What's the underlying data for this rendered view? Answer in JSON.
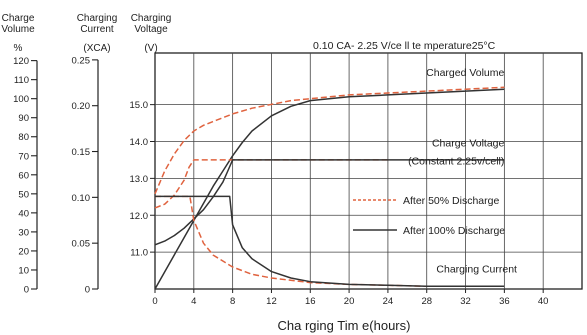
{
  "chart_data": {
    "type": "line",
    "title": "0.10 CA- 2.25 V/ce ll   te mperature25°C",
    "xlabel": "Cha rging Tim e(hours)",
    "x_ticks": [
      0,
      4,
      8,
      12,
      16,
      20,
      24,
      28,
      32,
      36,
      40
    ],
    "xlim": [
      0,
      44
    ],
    "axes": [
      {
        "id": "volume",
        "header": [
          "Charge",
          "Volume"
        ],
        "unit": "%",
        "ticks": [
          0,
          10,
          20,
          30,
          40,
          50,
          60,
          70,
          80,
          90,
          100,
          110,
          120
        ],
        "range": [
          0,
          124
        ]
      },
      {
        "id": "current",
        "header": [
          "Charging",
          "Current"
        ],
        "unit": "(XCA)",
        "ticks": [
          0,
          0.05,
          0.1,
          0.15,
          0.2,
          0.25
        ],
        "tick_labels": [
          "0",
          "0.05",
          "0.10",
          "0.15",
          "0.20",
          "0.25"
        ],
        "range": [
          0,
          0.2575
        ]
      },
      {
        "id": "voltage",
        "header": [
          "Charging",
          "Voltage"
        ],
        "unit": "(V)",
        "ticks": [
          11,
          12,
          13,
          14,
          15
        ],
        "tick_labels": [
          "11.0",
          "12.0",
          "13.0",
          "14.0",
          "15.0"
        ],
        "range": [
          10,
          16.4
        ]
      }
    ],
    "grid": true,
    "series": [
      {
        "name": "After 50% Discharge",
        "style": "dashed",
        "color": "#e0633f",
        "curve": "Charged Volume",
        "axis": "volume",
        "x": [
          0,
          0.5,
          1,
          2,
          3,
          4,
          5,
          6,
          8,
          10,
          12,
          14,
          16,
          20,
          24,
          28,
          32,
          36
        ],
        "y": [
          50,
          56,
          62,
          71,
          78,
          83,
          86,
          88,
          92,
          95,
          97,
          99,
          100,
          102,
          103,
          104,
          105,
          106
        ]
      },
      {
        "name": "After 100% Discharge",
        "style": "solid",
        "color": "#333333",
        "curve": "Charged Volume",
        "axis": "volume",
        "x": [
          0,
          1,
          2,
          3,
          4,
          5,
          6,
          7,
          8,
          9,
          10,
          12,
          14,
          16,
          20,
          24,
          28,
          32,
          36
        ],
        "y": [
          0,
          9,
          18,
          27,
          36,
          45,
          54,
          62,
          70,
          77,
          83,
          91,
          96,
          99,
          101,
          102,
          103,
          104,
          105
        ]
      },
      {
        "name": "After 50% Discharge",
        "style": "dashed",
        "color": "#e0633f",
        "curve": "Charge Voltage",
        "axis": "voltage",
        "x": [
          0,
          1,
          2,
          3,
          3.5,
          4,
          8,
          12,
          16,
          20,
          24
        ],
        "y": [
          12.2,
          12.3,
          12.55,
          12.95,
          13.3,
          13.5,
          13.5,
          13.5,
          13.5,
          13.5,
          13.5
        ]
      },
      {
        "name": "After 100% Discharge",
        "style": "solid",
        "color": "#333333",
        "curve": "Charge Voltage",
        "axis": "voltage",
        "x": [
          0,
          1,
          2,
          3,
          4,
          5,
          6,
          7,
          7.5,
          8,
          12,
          16,
          20,
          24,
          28,
          32,
          36
        ],
        "y": [
          11.2,
          11.3,
          11.45,
          11.65,
          11.9,
          12.15,
          12.5,
          12.9,
          13.2,
          13.5,
          13.5,
          13.5,
          13.5,
          13.5,
          13.5,
          13.5,
          13.5
        ]
      },
      {
        "name": "After 50% Discharge",
        "style": "dashed",
        "color": "#e0633f",
        "curve": "Charging Current",
        "axis": "current",
        "x": [
          0,
          3,
          3.6,
          4,
          5,
          6,
          8,
          10,
          12,
          16,
          20,
          24,
          28,
          32,
          36
        ],
        "y": [
          0.101,
          0.101,
          0.101,
          0.075,
          0.05,
          0.037,
          0.024,
          0.016,
          0.012,
          0.007,
          0.005,
          0.004,
          0.003,
          0.003,
          0.003
        ]
      },
      {
        "name": "After 100% Discharge",
        "style": "solid",
        "color": "#333333",
        "curve": "Charging Current",
        "axis": "current",
        "x": [
          0,
          7.7,
          8,
          9,
          10,
          12,
          14,
          16,
          20,
          24,
          28,
          32,
          36
        ],
        "y": [
          0.101,
          0.101,
          0.07,
          0.045,
          0.033,
          0.019,
          0.012,
          0.008,
          0.005,
          0.004,
          0.003,
          0.003,
          0.003
        ]
      }
    ],
    "annotations": [
      {
        "text": "Charged Volume",
        "x": 36,
        "axis": "volume",
        "y": 112
      },
      {
        "text": "Charge Voltage",
        "x": 36,
        "axis": "voltage",
        "y": 13.86
      },
      {
        "text": "(Constant 2.25v/cell)",
        "x": 36,
        "axis": "voltage",
        "y": 13.37
      },
      {
        "text": "Charging Current",
        "x": 29,
        "axis": "current",
        "y": 0.018
      }
    ],
    "legend": {
      "position": "right",
      "entries": [
        "After 50% Discharge",
        "After 100% Discharge"
      ]
    }
  }
}
